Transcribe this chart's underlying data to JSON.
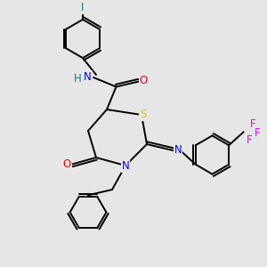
{
  "bg_color": "#e6e6e6",
  "bond_color": "#000000",
  "atom_colors": {
    "N": "#0000ee",
    "O": "#ee0000",
    "S": "#cccc00",
    "I": "#008080",
    "F": "#ee00ee",
    "H": "#008080",
    "C": "#000000"
  },
  "lw": 1.4,
  "font_size": 8.5,
  "fig_size": [
    3.0,
    3.0
  ],
  "dpi": 100
}
